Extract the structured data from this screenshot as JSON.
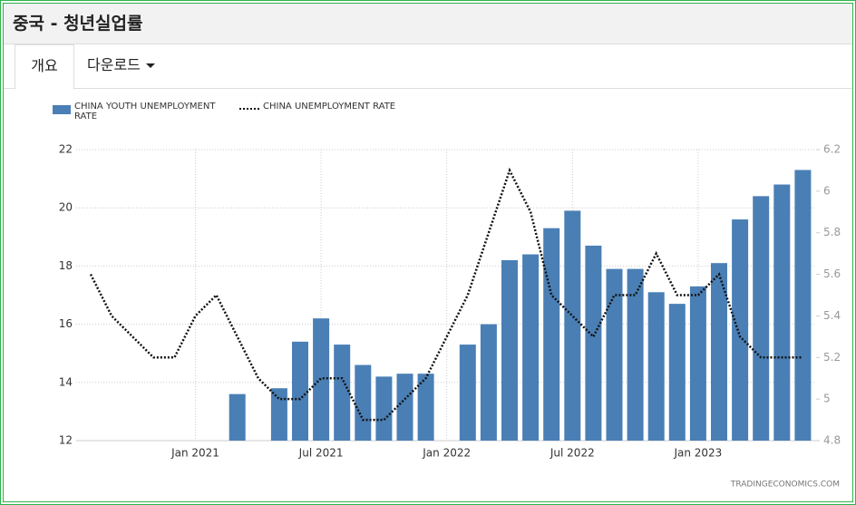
{
  "header": {
    "title": "중국 - 청년실업률"
  },
  "tabs": [
    "개요",
    "다운로드"
  ],
  "source": "TRADINGECONOMICS.COM",
  "chart_data": {
    "type": "bar-line",
    "categories": [
      null,
      null,
      null,
      null,
      null,
      "Jan 2021",
      null,
      null,
      null,
      null,
      null,
      "Jul 2021",
      null,
      null,
      null,
      null,
      null,
      "Jan 2022",
      null,
      null,
      null,
      null,
      null,
      "Jul 2022",
      null,
      null,
      null,
      null,
      null,
      "Jan 2023",
      null,
      null,
      null,
      null,
      null
    ],
    "series": [
      {
        "name": "CHINA YOUTH UNEMPLOYMENT RATE",
        "color": "#4a7fb5",
        "type": "bar",
        "values": [
          null,
          null,
          null,
          null,
          null,
          null,
          null,
          13.6,
          null,
          13.8,
          15.4,
          16.2,
          15.3,
          14.6,
          14.2,
          14.3,
          14.3,
          null,
          15.3,
          16.0,
          18.2,
          18.4,
          19.3,
          19.9,
          18.7,
          17.9,
          17.9,
          17.1,
          16.7,
          17.3,
          18.1,
          19.6,
          20.4,
          20.8,
          21.3
        ]
      },
      {
        "name": "CHINA UNEMPLOYMENT RATE",
        "color": "#111111",
        "type": "line",
        "axis": "y2",
        "values": [
          5.6,
          5.4,
          5.3,
          5.2,
          5.2,
          5.4,
          5.5,
          5.3,
          5.1,
          5.0,
          5.0,
          5.1,
          5.1,
          4.9,
          4.9,
          5.0,
          5.1,
          5.3,
          5.5,
          5.8,
          6.1,
          5.9,
          5.5,
          5.4,
          5.3,
          5.5,
          5.5,
          5.7,
          5.5,
          5.5,
          5.6,
          5.3,
          5.2,
          5.2,
          5.2
        ]
      }
    ],
    "ylim": [
      12,
      22
    ],
    "yticks": [
      12,
      14,
      16,
      18,
      20,
      22
    ],
    "y2lim": [
      4.8,
      6.2
    ],
    "y2ticks": [
      4.8,
      5,
      5.2,
      5.4,
      5.6,
      5.8,
      6,
      6.2
    ],
    "grid": true
  }
}
